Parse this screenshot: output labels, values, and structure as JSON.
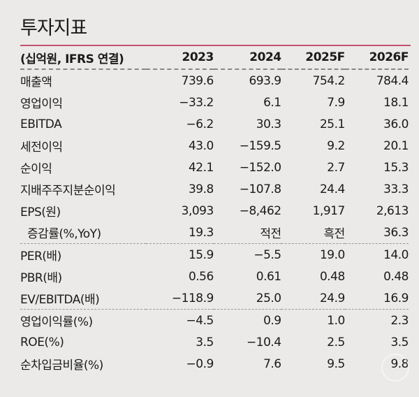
{
  "title": "투자지표",
  "header": {
    "unit": "(십억원, IFRS 연결)",
    "years": [
      "2023",
      "2024",
      "2025F",
      "2026F"
    ]
  },
  "rows": [
    {
      "label": "매출액",
      "values": [
        "739.6",
        "693.9",
        "754.2",
        "784.4"
      ]
    },
    {
      "label": "영업이익",
      "values": [
        "−33.2",
        "6.1",
        "7.9",
        "18.1"
      ]
    },
    {
      "label": "EBITDA",
      "values": [
        "−6.2",
        "30.3",
        "25.1",
        "36.0"
      ]
    },
    {
      "label": "세전이익",
      "values": [
        "43.0",
        "−159.5",
        "9.2",
        "20.1"
      ]
    },
    {
      "label": "순이익",
      "values": [
        "42.1",
        "−152.0",
        "2.7",
        "15.3"
      ]
    },
    {
      "label": "지배주주지분순이익",
      "values": [
        "39.8",
        "−107.8",
        "24.4",
        "33.3"
      ]
    },
    {
      "label": "EPS(원)",
      "values": [
        "3,093",
        "−8,462",
        "1,917",
        "2,613"
      ]
    },
    {
      "label": "증감률(%,YoY)",
      "values": [
        "19.3",
        "적전",
        "흑전",
        "36.3"
      ]
    },
    {
      "label": "PER(배)",
      "values": [
        "15.9",
        "−5.5",
        "19.0",
        "14.0"
      ]
    },
    {
      "label": "PBR(배)",
      "values": [
        "0.56",
        "0.61",
        "0.48",
        "0.48"
      ]
    },
    {
      "label": "EV/EBITDA(배)",
      "values": [
        "−118.9",
        "25.0",
        "24.9",
        "16.9"
      ]
    },
    {
      "label": "영업이익률(%)",
      "values": [
        "−4.5",
        "0.9",
        "1.0",
        "2.3"
      ]
    },
    {
      "label": "ROE(%)",
      "values": [
        "3.5",
        "−10.4",
        "2.5",
        "3.5"
      ]
    },
    {
      "label": "순차입금비율(%)",
      "values": [
        "−0.9",
        "7.6",
        "9.5",
        "9.8"
      ]
    }
  ],
  "colors": {
    "accent_line": "#c2506e",
    "background": "#ebeae8"
  }
}
